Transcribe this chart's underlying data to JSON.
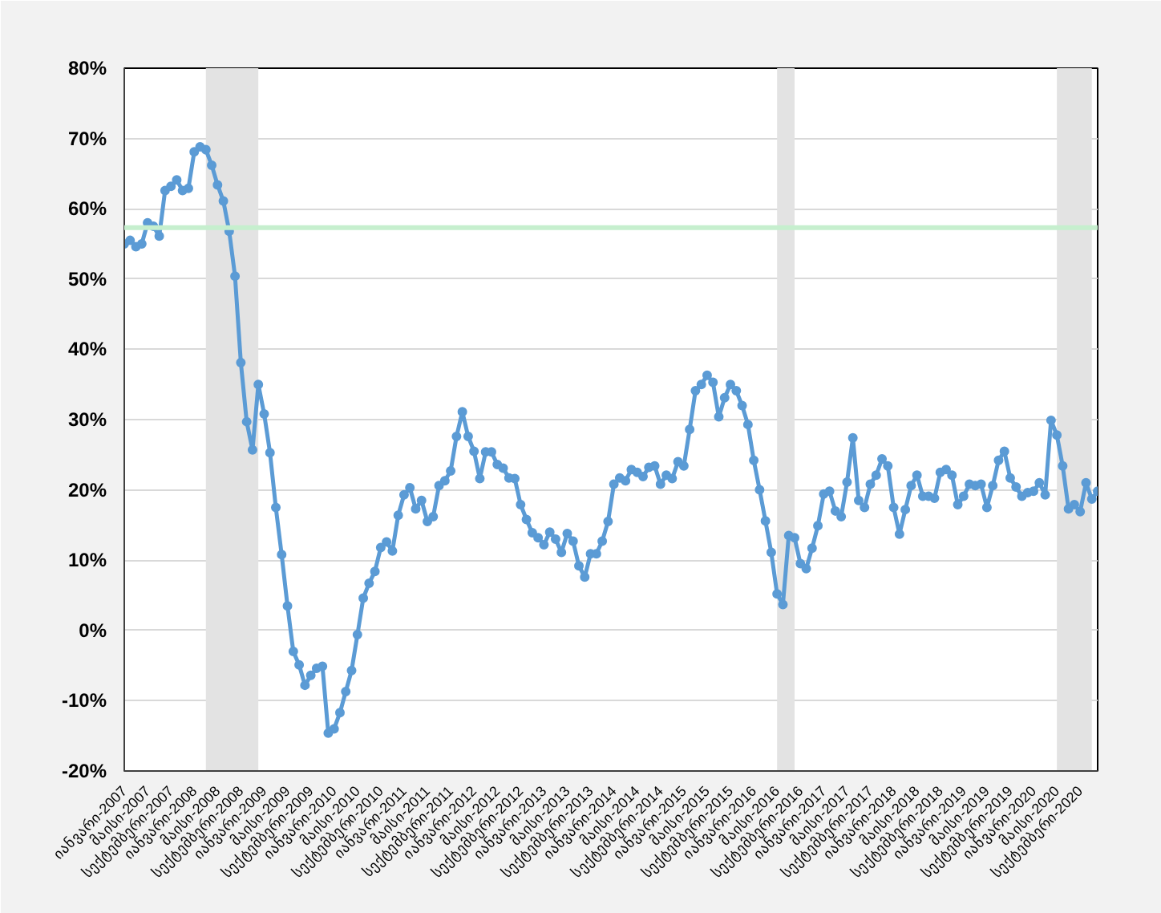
{
  "chart_data": {
    "type": "line",
    "x": [
      "2007-01",
      "2007-02",
      "2007-03",
      "2007-04",
      "2007-05",
      "2007-06",
      "2007-07",
      "2007-08",
      "2007-09",
      "2007-10",
      "2007-11",
      "2007-12",
      "2008-01",
      "2008-02",
      "2008-03",
      "2008-04",
      "2008-05",
      "2008-06",
      "2008-07",
      "2008-08",
      "2008-09",
      "2008-10",
      "2008-11",
      "2008-12",
      "2009-01",
      "2009-02",
      "2009-03",
      "2009-04",
      "2009-05",
      "2009-06",
      "2009-07",
      "2009-08",
      "2009-09",
      "2009-10",
      "2009-11",
      "2009-12",
      "2010-01",
      "2010-02",
      "2010-03",
      "2010-04",
      "2010-05",
      "2010-06",
      "2010-07",
      "2010-08",
      "2010-09",
      "2010-10",
      "2010-11",
      "2010-12",
      "2011-01",
      "2011-02",
      "2011-03",
      "2011-04",
      "2011-05",
      "2011-06",
      "2011-07",
      "2011-08",
      "2011-09",
      "2011-10",
      "2011-11",
      "2011-12",
      "2012-01",
      "2012-02",
      "2012-03",
      "2012-04",
      "2012-05",
      "2012-06",
      "2012-07",
      "2012-08",
      "2012-09",
      "2012-10",
      "2012-11",
      "2012-12",
      "2013-01",
      "2013-02",
      "2013-03",
      "2013-04",
      "2013-05",
      "2013-06",
      "2013-07",
      "2013-08",
      "2013-09",
      "2013-10",
      "2013-11",
      "2013-12",
      "2014-01",
      "2014-02",
      "2014-03",
      "2014-04",
      "2014-05",
      "2014-06",
      "2014-07",
      "2014-08",
      "2014-09",
      "2014-10",
      "2014-11",
      "2014-12",
      "2015-01",
      "2015-02",
      "2015-03",
      "2015-04",
      "2015-05",
      "2015-06",
      "2015-07",
      "2015-08",
      "2015-09",
      "2015-10",
      "2015-11",
      "2015-12",
      "2016-01",
      "2016-02",
      "2016-03",
      "2016-04",
      "2016-05",
      "2016-06",
      "2016-07",
      "2016-08",
      "2016-09",
      "2016-10",
      "2016-11",
      "2016-12",
      "2017-01",
      "2017-02",
      "2017-03",
      "2017-04",
      "2017-05",
      "2017-06",
      "2017-07",
      "2017-08",
      "2017-09",
      "2017-10",
      "2017-11",
      "2017-12",
      "2018-01",
      "2018-02",
      "2018-03",
      "2018-04",
      "2018-05",
      "2018-06",
      "2018-07",
      "2018-08",
      "2018-09",
      "2018-10",
      "2018-11",
      "2018-12",
      "2019-01",
      "2019-02",
      "2019-03",
      "2019-04",
      "2019-05",
      "2019-06",
      "2019-07",
      "2019-08",
      "2019-09",
      "2019-10",
      "2019-11",
      "2019-12",
      "2020-01",
      "2020-02",
      "2020-03",
      "2020-04",
      "2020-05",
      "2020-06",
      "2020-07",
      "2020-08",
      "2020-09",
      "2020-10",
      "2020-11",
      "2020-12"
    ],
    "series": [
      {
        "color": "#5b9bd5",
        "values": [
          55.0,
          55.5,
          54.6,
          55.0,
          58.0,
          57.5,
          56.1,
          62.6,
          63.2,
          64.1,
          62.6,
          62.9,
          68.1,
          68.8,
          68.4,
          66.2,
          63.4,
          61.1,
          56.8,
          50.4,
          38.1,
          29.7,
          25.7,
          35.0,
          30.8,
          25.3,
          17.5,
          10.8,
          3.5,
          -3.0,
          -4.9,
          -7.8,
          -6.4,
          -5.4,
          -5.1,
          -14.6,
          -14.0,
          -11.7,
          -8.7,
          -5.7,
          -0.6,
          4.6,
          6.7,
          8.4,
          11.8,
          12.6,
          11.3,
          16.4,
          19.3,
          20.3,
          17.3,
          18.5,
          15.5,
          16.2,
          20.6,
          21.3,
          22.7,
          27.6,
          31.1,
          27.6,
          25.5,
          21.6,
          25.4,
          25.4,
          23.6,
          23.1,
          21.7,
          21.6,
          17.9,
          15.8,
          13.9,
          13.2,
          12.2,
          14.0,
          13.0,
          11.1,
          13.8,
          12.7,
          9.2,
          7.6,
          10.9,
          10.9,
          12.7,
          15.5,
          20.8,
          21.7,
          21.3,
          22.9,
          22.5,
          21.9,
          23.2,
          23.4,
          20.8,
          22.1,
          21.6,
          24.0,
          23.4,
          28.6,
          34.1,
          35.0,
          36.3,
          35.3,
          30.4,
          33.1,
          35.0,
          34.1,
          32.0,
          29.3,
          24.2,
          20.0,
          15.6,
          11.1,
          5.2,
          3.7,
          13.5,
          13.2,
          9.5,
          8.8,
          11.7,
          14.9,
          19.4,
          19.8,
          17.0,
          16.2,
          21.1,
          27.4,
          18.5,
          17.5,
          20.8,
          22.1,
          24.4,
          23.4,
          17.5,
          13.7,
          17.2,
          20.6,
          22.1,
          19.1,
          19.1,
          18.8,
          22.5,
          22.9,
          22.1,
          17.9,
          19.1,
          20.8,
          20.6,
          20.8,
          17.5,
          20.6,
          24.2,
          25.5,
          21.7,
          20.4,
          19.1,
          19.6,
          19.8,
          21.0,
          19.3,
          29.9,
          27.8,
          23.4,
          17.3,
          17.9,
          16.9,
          21.0,
          18.7,
          19.8
        ]
      }
    ],
    "xlim": [
      "2007-01",
      "2020-12"
    ],
    "xticks": [
      {
        "value": "2007-01",
        "label": "იანვარი-2007"
      },
      {
        "value": "2007-05",
        "label": "მაისი-2007"
      },
      {
        "value": "2007-09",
        "label": "სექტემბერი-2007"
      },
      {
        "value": "2008-01",
        "label": "იანვარი-2008"
      },
      {
        "value": "2008-05",
        "label": "მაისი-2008"
      },
      {
        "value": "2008-09",
        "label": "სექტემბერი-2008"
      },
      {
        "value": "2009-01",
        "label": "იანვარი-2009"
      },
      {
        "value": "2009-05",
        "label": "მაისი-2009"
      },
      {
        "value": "2009-09",
        "label": "სექტემბერი-2009"
      },
      {
        "value": "2010-01",
        "label": "იანვარი-2010"
      },
      {
        "value": "2010-05",
        "label": "მაისი-2010"
      },
      {
        "value": "2010-09",
        "label": "სექტემბერი-2010"
      },
      {
        "value": "2011-01",
        "label": "იანვარი-2011"
      },
      {
        "value": "2011-05",
        "label": "მაისი-2011"
      },
      {
        "value": "2011-09",
        "label": "სექტემბერი-2011"
      },
      {
        "value": "2012-01",
        "label": "იანვარი-2012"
      },
      {
        "value": "2012-05",
        "label": "მაისი-2012"
      },
      {
        "value": "2012-09",
        "label": "სექტემბერი-2012"
      },
      {
        "value": "2013-01",
        "label": "იანვარი-2013"
      },
      {
        "value": "2013-05",
        "label": "მაისი-2013"
      },
      {
        "value": "2013-09",
        "label": "სექტემბერი-2013"
      },
      {
        "value": "2014-01",
        "label": "იანვარი-2014"
      },
      {
        "value": "2014-05",
        "label": "მაისი-2014"
      },
      {
        "value": "2014-09",
        "label": "სექტემბერი-2014"
      },
      {
        "value": "2015-01",
        "label": "იანვარი-2015"
      },
      {
        "value": "2015-05",
        "label": "მაისი-2015"
      },
      {
        "value": "2015-09",
        "label": "სექტემბერი-2015"
      },
      {
        "value": "2016-01",
        "label": "იანვარი-2016"
      },
      {
        "value": "2016-05",
        "label": "მაისი-2016"
      },
      {
        "value": "2016-09",
        "label": "სექტემბერი-2016"
      },
      {
        "value": "2017-01",
        "label": "იანვარი-2017"
      },
      {
        "value": "2017-05",
        "label": "მაისი-2017"
      },
      {
        "value": "2017-09",
        "label": "სექტემბერი-2017"
      },
      {
        "value": "2018-01",
        "label": "იანვარი-2018"
      },
      {
        "value": "2018-05",
        "label": "მაისი-2018"
      },
      {
        "value": "2018-09",
        "label": "სექტემბერი-2018"
      },
      {
        "value": "2019-01",
        "label": "იანვარი-2019"
      },
      {
        "value": "2019-05",
        "label": "მაისი-2019"
      },
      {
        "value": "2019-09",
        "label": "სექტემბერი-2019"
      },
      {
        "value": "2020-01",
        "label": "იანვარი-2020"
      },
      {
        "value": "2020-05",
        "label": "მაისი-2020"
      },
      {
        "value": "2020-09",
        "label": "სექტემბერი-2020"
      }
    ],
    "ylim": [
      -20,
      80
    ],
    "yticks": [
      {
        "value": -20,
        "label": "-20%"
      },
      {
        "value": -10,
        "label": "-10%"
      },
      {
        "value": 0,
        "label": "0%"
      },
      {
        "value": 10,
        "label": "10%"
      },
      {
        "value": 20,
        "label": "20%"
      },
      {
        "value": 30,
        "label": "30%"
      },
      {
        "value": 40,
        "label": "40%"
      },
      {
        "value": 50,
        "label": "50%"
      },
      {
        "value": 60,
        "label": "60%"
      },
      {
        "value": 70,
        "label": "70%"
      },
      {
        "value": 80,
        "label": "80%"
      }
    ],
    "ref_lines": [
      {
        "axis": "y",
        "value": 57.3,
        "color": "#c6efce"
      }
    ],
    "bands": [
      {
        "axis": "x",
        "from": "2008-03",
        "to": "2008-12",
        "color": "#e3e3e3"
      },
      {
        "axis": "x",
        "from": "2016-05",
        "to": "2016-08",
        "color": "#e3e3e3"
      },
      {
        "axis": "x",
        "from": "2020-05",
        "to": "2020-11",
        "color": "#e3e3e3"
      }
    ],
    "grid": "y",
    "marker": "circle",
    "line_style": "solid"
  }
}
